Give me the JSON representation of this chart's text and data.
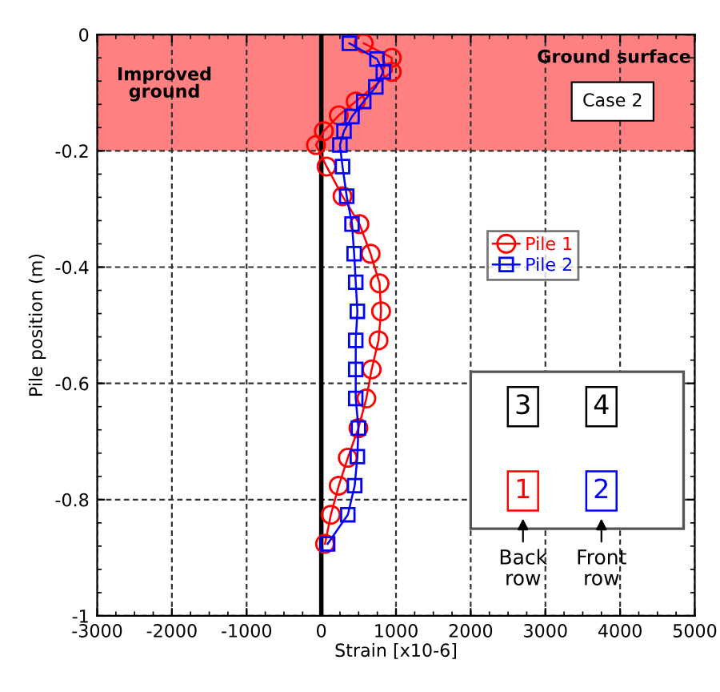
{
  "chart_data": {
    "type": "line",
    "xlabel": "Strain [x10-6]",
    "ylabel": "Pile position (m)",
    "xlim": [
      -3000,
      5000
    ],
    "xticks": [
      -3000,
      -2000,
      -1000,
      0,
      1000,
      2000,
      3000,
      4000,
      5000
    ],
    "ylim": [
      -1,
      0
    ],
    "yticks": [
      -1,
      -0.8,
      -0.6,
      -0.4,
      -0.2,
      0
    ],
    "grid": true,
    "legend": "right",
    "line_style": "solid",
    "bands": [
      {
        "axis": "y",
        "from": -0.2,
        "to": 0,
        "label": "Improved ground",
        "color": "#ff8080"
      }
    ],
    "ref_lines": [
      {
        "axis": "x",
        "value": 0,
        "label": null,
        "color": "#000000"
      }
    ],
    "annotations": [
      "Ground surface",
      "Case 2",
      "3",
      "4",
      "1",
      "2",
      "Back row",
      "Front row"
    ],
    "series": [
      {
        "name": "Pile 1",
        "color": "#ff0000",
        "marker": "circle",
        "x": [
          568,
          943,
          943,
          461,
          234,
          35,
          -71,
          71,
          284,
          511,
          660,
          780,
          800,
          766,
          674,
          603,
          497,
          355,
          234,
          128,
          50
        ],
        "values": [
          -0.015,
          -0.04,
          -0.064,
          -0.115,
          -0.139,
          -0.166,
          -0.19,
          -0.227,
          -0.278,
          -0.326,
          -0.377,
          -0.428,
          -0.476,
          -0.526,
          -0.576,
          -0.626,
          -0.677,
          -0.728,
          -0.776,
          -0.826,
          -0.876
        ]
      },
      {
        "name": "Pile 2",
        "color": "#0000ff",
        "marker": "square",
        "x": [
          376,
          745,
          830,
          730,
          568,
          411,
          304,
          249,
          284,
          340,
          411,
          440,
          461,
          483,
          461,
          461,
          461,
          497,
          483,
          447,
          355,
          85
        ],
        "values": [
          -0.015,
          -0.042,
          -0.064,
          -0.09,
          -0.115,
          -0.141,
          -0.166,
          -0.19,
          -0.227,
          -0.278,
          -0.326,
          -0.377,
          -0.426,
          -0.476,
          -0.526,
          -0.576,
          -0.626,
          -0.677,
          -0.726,
          -0.776,
          -0.826,
          -0.876
        ]
      }
    ]
  }
}
